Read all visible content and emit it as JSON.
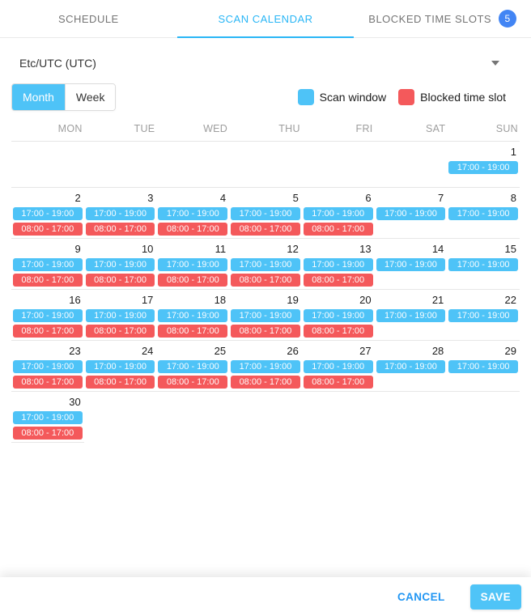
{
  "tabs": [
    {
      "label": "SCHEDULE",
      "active": false
    },
    {
      "label": "SCAN CALENDAR",
      "active": true
    },
    {
      "label": "BLOCKED TIME SLOTS",
      "active": false,
      "badge": "5"
    }
  ],
  "timezone": {
    "value": "Etc/UTC (UTC)"
  },
  "view_toggle": {
    "options": [
      "Month",
      "Week"
    ],
    "selected": "Month"
  },
  "legend": [
    {
      "type": "scan",
      "label": "Scan window",
      "color": "#4EC3F7"
    },
    {
      "type": "blocked",
      "label": "Blocked time slot",
      "color": "#F4595B"
    }
  ],
  "event_labels": {
    "scan": "17:00 - 19:00",
    "blocked": "08:00 - 17:00"
  },
  "calendar": {
    "day_headers": [
      "MON",
      "TUE",
      "WED",
      "THU",
      "FRI",
      "SAT",
      "SUN"
    ],
    "weeks": [
      [
        null,
        null,
        null,
        null,
        null,
        null,
        {
          "day": 1,
          "events": [
            "scan"
          ]
        }
      ],
      [
        {
          "day": 2,
          "events": [
            "scan",
            "blocked"
          ]
        },
        {
          "day": 3,
          "events": [
            "scan",
            "blocked"
          ]
        },
        {
          "day": 4,
          "events": [
            "scan",
            "blocked"
          ]
        },
        {
          "day": 5,
          "events": [
            "scan",
            "blocked"
          ]
        },
        {
          "day": 6,
          "events": [
            "scan",
            "blocked"
          ]
        },
        {
          "day": 7,
          "events": [
            "scan"
          ]
        },
        {
          "day": 8,
          "events": [
            "scan"
          ]
        }
      ],
      [
        {
          "day": 9,
          "events": [
            "scan",
            "blocked"
          ]
        },
        {
          "day": 10,
          "events": [
            "scan",
            "blocked"
          ]
        },
        {
          "day": 11,
          "events": [
            "scan",
            "blocked"
          ]
        },
        {
          "day": 12,
          "events": [
            "scan",
            "blocked"
          ]
        },
        {
          "day": 13,
          "events": [
            "scan",
            "blocked"
          ]
        },
        {
          "day": 14,
          "events": [
            "scan"
          ]
        },
        {
          "day": 15,
          "events": [
            "scan"
          ]
        }
      ],
      [
        {
          "day": 16,
          "events": [
            "scan",
            "blocked"
          ]
        },
        {
          "day": 17,
          "events": [
            "scan",
            "blocked"
          ]
        },
        {
          "day": 18,
          "events": [
            "scan",
            "blocked"
          ]
        },
        {
          "day": 19,
          "events": [
            "scan",
            "blocked"
          ]
        },
        {
          "day": 20,
          "events": [
            "scan",
            "blocked"
          ]
        },
        {
          "day": 21,
          "events": [
            "scan"
          ]
        },
        {
          "day": 22,
          "events": [
            "scan"
          ]
        }
      ],
      [
        {
          "day": 23,
          "events": [
            "scan",
            "blocked"
          ]
        },
        {
          "day": 24,
          "events": [
            "scan",
            "blocked"
          ]
        },
        {
          "day": 25,
          "events": [
            "scan",
            "blocked"
          ]
        },
        {
          "day": 26,
          "events": [
            "scan",
            "blocked"
          ]
        },
        {
          "day": 27,
          "events": [
            "scan",
            "blocked"
          ]
        },
        {
          "day": 28,
          "events": [
            "scan"
          ]
        },
        {
          "day": 29,
          "events": [
            "scan"
          ]
        }
      ],
      [
        {
          "day": 30,
          "events": [
            "scan",
            "blocked"
          ]
        },
        null,
        null,
        null,
        null,
        null,
        null
      ]
    ]
  },
  "footer": {
    "cancel_label": "CANCEL",
    "save_label": "SAVE"
  },
  "colors": {
    "scan_window": "#4EC3F7",
    "blocked_slot": "#F4595B",
    "active_tab": "#29B6F6",
    "badge": "#4285F4",
    "cancel_text": "#2196F3",
    "save_bg": "#4FC4F7"
  }
}
